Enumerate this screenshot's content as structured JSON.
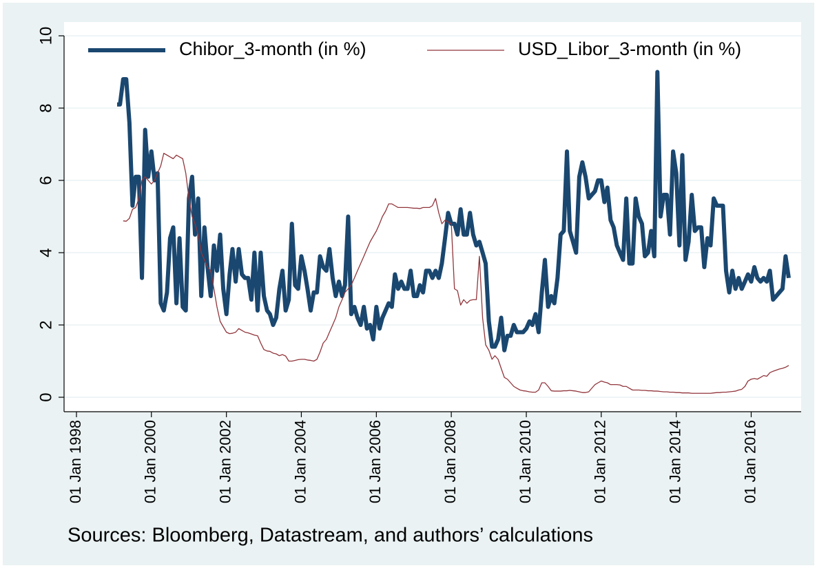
{
  "chart_data": {
    "type": "line",
    "caption": "Sources: Bloomberg, Datastream, and authors’ calculations",
    "x": [
      "1999-02-01",
      "1999-03-01",
      "1999-04-01",
      "1999-05-01",
      "1999-06-01",
      "1999-07-01",
      "1999-08-01",
      "1999-09-01",
      "1999-10-01",
      "1999-11-01",
      "1999-12-01",
      "2000-01-01",
      "2000-02-01",
      "2000-03-01",
      "2000-04-01",
      "2000-05-01",
      "2000-06-01",
      "2000-07-01",
      "2000-08-01",
      "2000-09-01",
      "2000-10-01",
      "2000-11-01",
      "2000-12-01",
      "2001-01-01",
      "2001-02-01",
      "2001-03-01",
      "2001-04-01",
      "2001-05-01",
      "2001-06-01",
      "2001-07-01",
      "2001-08-01",
      "2001-09-01",
      "2001-10-01",
      "2001-11-01",
      "2001-12-01",
      "2002-01-01",
      "2002-02-01",
      "2002-03-01",
      "2002-04-01",
      "2002-05-01",
      "2002-06-01",
      "2002-07-01",
      "2002-08-01",
      "2002-09-01",
      "2002-10-01",
      "2002-11-01",
      "2002-12-01",
      "2003-01-01",
      "2003-02-01",
      "2003-03-01",
      "2003-04-01",
      "2003-05-01",
      "2003-06-01",
      "2003-07-01",
      "2003-08-01",
      "2003-09-01",
      "2003-10-01",
      "2003-11-01",
      "2003-12-01",
      "2004-01-01",
      "2004-02-01",
      "2004-03-01",
      "2004-04-01",
      "2004-05-01",
      "2004-06-01",
      "2004-07-01",
      "2004-08-01",
      "2004-09-01",
      "2004-10-01",
      "2004-11-01",
      "2004-12-01",
      "2005-01-01",
      "2005-02-01",
      "2005-03-01",
      "2005-04-01",
      "2005-05-01",
      "2005-06-01",
      "2005-07-01",
      "2005-08-01",
      "2005-09-01",
      "2005-10-01",
      "2005-11-01",
      "2005-12-01",
      "2006-01-01",
      "2006-02-01",
      "2006-03-01",
      "2006-04-01",
      "2006-05-01",
      "2006-06-01",
      "2006-07-01",
      "2006-08-01",
      "2006-09-01",
      "2006-10-01",
      "2006-11-01",
      "2006-12-01",
      "2007-01-01",
      "2007-02-01",
      "2007-03-01",
      "2007-04-01",
      "2007-05-01",
      "2007-06-01",
      "2007-07-01",
      "2007-08-01",
      "2007-09-01",
      "2007-10-01",
      "2007-11-01",
      "2007-12-01",
      "2008-01-01",
      "2008-02-01",
      "2008-03-01",
      "2008-04-01",
      "2008-05-01",
      "2008-06-01",
      "2008-07-01",
      "2008-08-01",
      "2008-09-01",
      "2008-10-01",
      "2008-11-01",
      "2008-12-01",
      "2009-01-01",
      "2009-02-01",
      "2009-03-01",
      "2009-04-01",
      "2009-05-01",
      "2009-06-01",
      "2009-07-01",
      "2009-08-01",
      "2009-09-01",
      "2009-10-01",
      "2009-11-01",
      "2009-12-01",
      "2010-01-01",
      "2010-02-01",
      "2010-03-01",
      "2010-04-01",
      "2010-05-01",
      "2010-06-01",
      "2010-07-01",
      "2010-08-01",
      "2010-09-01",
      "2010-10-01",
      "2010-11-01",
      "2010-12-01",
      "2011-01-01",
      "2011-02-01",
      "2011-03-01",
      "2011-04-01",
      "2011-05-01",
      "2011-06-01",
      "2011-07-01",
      "2011-08-01",
      "2011-09-01",
      "2011-10-01",
      "2011-11-01",
      "2011-12-01",
      "2012-01-01",
      "2012-02-01",
      "2012-03-01",
      "2012-04-01",
      "2012-05-01",
      "2012-06-01",
      "2012-07-01",
      "2012-08-01",
      "2012-09-01",
      "2012-10-01",
      "2012-11-01",
      "2012-12-01",
      "2013-01-01",
      "2013-02-01",
      "2013-03-01",
      "2013-04-01",
      "2013-05-01",
      "2013-06-01",
      "2013-07-01",
      "2013-08-01",
      "2013-09-01",
      "2013-10-01",
      "2013-11-01",
      "2013-12-01",
      "2014-01-01",
      "2014-02-01",
      "2014-03-01",
      "2014-04-01",
      "2014-05-01",
      "2014-06-01",
      "2014-07-01",
      "2014-08-01",
      "2014-09-01",
      "2014-10-01",
      "2014-11-01",
      "2014-12-01",
      "2015-01-01",
      "2015-02-01",
      "2015-03-01",
      "2015-04-01",
      "2015-05-01",
      "2015-06-01",
      "2015-07-01",
      "2015-08-01",
      "2015-09-01",
      "2015-10-01",
      "2015-11-01",
      "2015-12-01",
      "2016-01-01",
      "2016-02-01",
      "2016-03-01",
      "2016-04-01",
      "2016-05-01",
      "2016-06-01",
      "2016-07-01",
      "2016-08-01",
      "2016-09-01",
      "2016-10-01",
      "2016-11-01",
      "2016-12-01",
      "2017-01-01"
    ],
    "series": [
      {
        "name": "Chibor_3-month (in %)",
        "color": "#1a476f",
        "line_width": 6,
        "values": [
          8.1,
          8.1,
          8.8,
          8.8,
          7.6,
          5.3,
          6.1,
          6.1,
          3.3,
          7.4,
          6.1,
          6.8,
          6.0,
          6.2,
          2.6,
          2.4,
          2.9,
          4.4,
          4.7,
          2.6,
          4.4,
          2.5,
          2.4,
          5.5,
          6.1,
          4.5,
          5.5,
          2.8,
          4.7,
          3.6,
          2.8,
          4.2,
          3.5,
          4.5,
          3.0,
          2.3,
          3.4,
          4.1,
          3.2,
          4.1,
          3.4,
          3.3,
          3.3,
          2.7,
          4.0,
          2.4,
          4.0,
          2.8,
          2.4,
          2.3,
          2.0,
          2.2,
          3.0,
          3.5,
          2.4,
          2.7,
          4.8,
          3.1,
          3.0,
          3.9,
          3.5,
          3.0,
          2.4,
          2.9,
          2.9,
          3.9,
          3.6,
          3.5,
          4.1,
          3.3,
          2.8,
          3.2,
          2.8,
          3.1,
          5.0,
          2.3,
          2.5,
          2.2,
          2.0,
          2.5,
          1.9,
          2.0,
          1.6,
          2.5,
          1.9,
          2.2,
          2.4,
          2.6,
          2.5,
          3.4,
          3.0,
          3.2,
          3.0,
          3.0,
          3.5,
          2.8,
          2.8,
          3.1,
          2.9,
          3.5,
          3.5,
          3.3,
          3.5,
          3.3,
          3.7,
          4.4,
          5.1,
          4.8,
          4.8,
          4.5,
          5.2,
          4.5,
          4.5,
          5.1,
          4.5,
          4.2,
          4.3,
          4.0,
          3.7,
          2.1,
          1.4,
          1.4,
          1.6,
          2.2,
          1.3,
          1.7,
          1.7,
          2.0,
          1.8,
          1.8,
          1.8,
          1.9,
          2.1,
          2.0,
          2.3,
          1.8,
          2.9,
          3.8,
          2.5,
          2.8,
          2.6,
          3.3,
          4.5,
          4.6,
          6.8,
          4.6,
          4.3,
          4.0,
          6.1,
          6.5,
          6.1,
          5.5,
          5.6,
          5.7,
          6.0,
          6.0,
          5.4,
          5.8,
          4.9,
          4.7,
          4.2,
          4.0,
          3.8,
          5.5,
          3.7,
          3.7,
          5.5,
          5.0,
          4.8,
          3.9,
          4.0,
          4.6,
          3.9,
          9.0,
          5.0,
          5.6,
          5.6,
          4.5,
          6.8,
          6.2,
          4.2,
          6.7,
          3.8,
          4.3,
          5.6,
          4.6,
          4.7,
          4.7,
          3.6,
          4.4,
          4.2,
          5.5,
          5.3,
          5.3,
          5.3,
          3.5,
          2.9,
          3.5,
          3.0,
          3.3,
          3.0,
          3.2,
          3.4,
          3.2,
          3.6,
          3.3,
          3.2,
          3.3,
          3.2,
          3.5,
          2.7,
          2.8,
          2.9,
          3.0,
          3.9,
          3.3
        ]
      },
      {
        "name": "USD_Libor_3-month (in %)",
        "color": "#90353b",
        "line_width": 1.3,
        "values": [
          null,
          null,
          4.88,
          4.87,
          4.95,
          5.2,
          5.25,
          5.5,
          6.0,
          6.1,
          6.0,
          5.9,
          6.0,
          6.2,
          6.4,
          6.75,
          6.7,
          6.65,
          6.6,
          6.7,
          6.65,
          6.6,
          6.2,
          5.5,
          5.0,
          4.8,
          4.5,
          4.0,
          3.8,
          3.6,
          3.5,
          3.0,
          2.5,
          2.1,
          1.95,
          1.8,
          1.76,
          1.77,
          1.8,
          1.9,
          1.85,
          1.8,
          1.78,
          1.75,
          1.72,
          1.7,
          1.5,
          1.32,
          1.28,
          1.27,
          1.22,
          1.2,
          1.15,
          1.18,
          1.14,
          1.0,
          1.0,
          1.02,
          1.04,
          1.05,
          1.05,
          1.03,
          1.02,
          1.0,
          1.05,
          1.25,
          1.5,
          1.6,
          1.8,
          2.0,
          2.2,
          2.5,
          2.7,
          2.9,
          3.0,
          3.1,
          3.3,
          3.5,
          3.7,
          3.9,
          4.1,
          4.3,
          4.45,
          4.6,
          4.8,
          5.0,
          5.15,
          5.35,
          5.35,
          5.3,
          5.25,
          5.25,
          5.25,
          5.25,
          5.24,
          5.23,
          5.23,
          5.22,
          5.25,
          5.25,
          5.25,
          5.3,
          5.5,
          5.1,
          4.8,
          4.9,
          4.85,
          4.8,
          3.0,
          2.95,
          2.55,
          2.7,
          2.6,
          2.68,
          2.7,
          2.7,
          3.9,
          2.2,
          1.45,
          1.3,
          1.05,
          1.15,
          1.05,
          0.8,
          0.55,
          0.5,
          0.4,
          0.3,
          0.25,
          0.2,
          0.18,
          0.17,
          0.15,
          0.14,
          0.14,
          0.2,
          0.4,
          0.4,
          0.3,
          0.18,
          0.17,
          0.17,
          0.17,
          0.18,
          0.18,
          0.19,
          0.18,
          0.17,
          0.15,
          0.13,
          0.13,
          0.15,
          0.25,
          0.35,
          0.4,
          0.45,
          0.42,
          0.4,
          0.35,
          0.35,
          0.35,
          0.34,
          0.3,
          0.3,
          0.25,
          0.2,
          0.2,
          0.2,
          0.19,
          0.19,
          0.18,
          0.18,
          0.17,
          0.17,
          0.16,
          0.15,
          0.15,
          0.14,
          0.14,
          0.13,
          0.13,
          0.12,
          0.12,
          0.12,
          0.11,
          0.11,
          0.11,
          0.11,
          0.11,
          0.11,
          0.11,
          0.12,
          0.13,
          0.13,
          0.14,
          0.14,
          0.15,
          0.16,
          0.17,
          0.2,
          0.22,
          0.3,
          0.45,
          0.5,
          0.52,
          0.5,
          0.55,
          0.6,
          0.58,
          0.68,
          0.72,
          0.75,
          0.78,
          0.8,
          0.83,
          0.88
        ]
      }
    ],
    "xlim": [
      "1998-01-01",
      "2017-01-01"
    ],
    "xticks": [
      {
        "value": "1998-01-01",
        "label": "01 Jan 1998"
      },
      {
        "value": "2000-01-01",
        "label": "01 Jan 2000"
      },
      {
        "value": "2002-01-01",
        "label": "01 Jan 2002"
      },
      {
        "value": "2004-01-01",
        "label": "01 Jan 2004"
      },
      {
        "value": "2006-01-01",
        "label": "01 Jan 2006"
      },
      {
        "value": "2008-01-01",
        "label": "01 Jan 2008"
      },
      {
        "value": "2010-01-01",
        "label": "01 Jan 2010"
      },
      {
        "value": "2012-01-01",
        "label": "01 Jan 2012"
      },
      {
        "value": "2014-01-01",
        "label": "01 Jan 2014"
      },
      {
        "value": "2016-01-01",
        "label": "01 Jan 2016"
      }
    ],
    "ylim": [
      0,
      10
    ],
    "yticks": [
      0,
      2,
      4,
      6,
      8,
      10
    ],
    "grid": true,
    "legend": "top"
  }
}
